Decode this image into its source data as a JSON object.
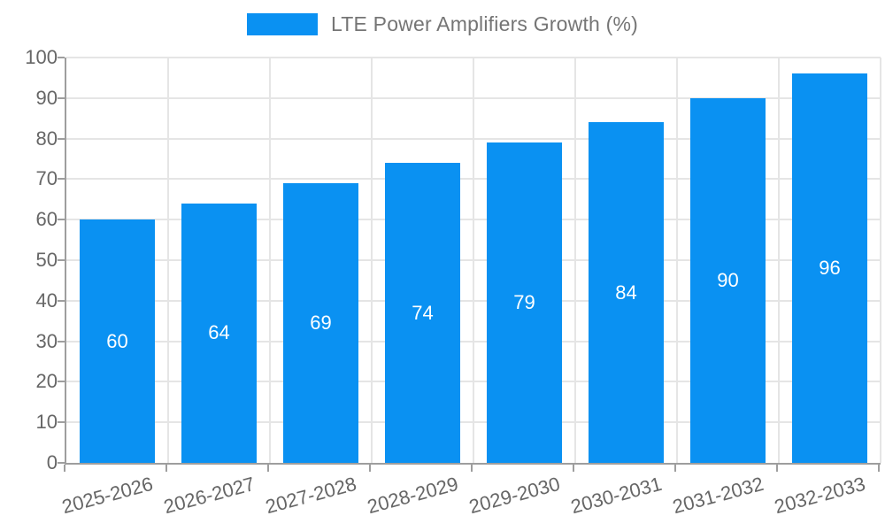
{
  "legend": {
    "label": "LTE Power Amplifiers Growth (%)"
  },
  "chart_data": {
    "type": "bar",
    "title": "LTE Power Amplifiers Growth (%)",
    "categories": [
      "2025-2026",
      "2026-2027",
      "2027-2028",
      "2028-2029",
      "2029-2030",
      "2030-2031",
      "2031-2032",
      "2032-2033"
    ],
    "values": [
      60,
      64,
      69,
      74,
      79,
      84,
      90,
      96
    ],
    "xlabel": "",
    "ylabel": "",
    "ylim": [
      0,
      100
    ],
    "ytick_step": 10,
    "grid": true,
    "legend_position": "top-center",
    "bar_color": "#0a91f2",
    "value_label_color": "#ffffff",
    "axis_color": "#9e9e9e",
    "gridline_color": "#e5e5e5",
    "tick_label_color": "#666666",
    "legend_text_color": "#757575"
  }
}
